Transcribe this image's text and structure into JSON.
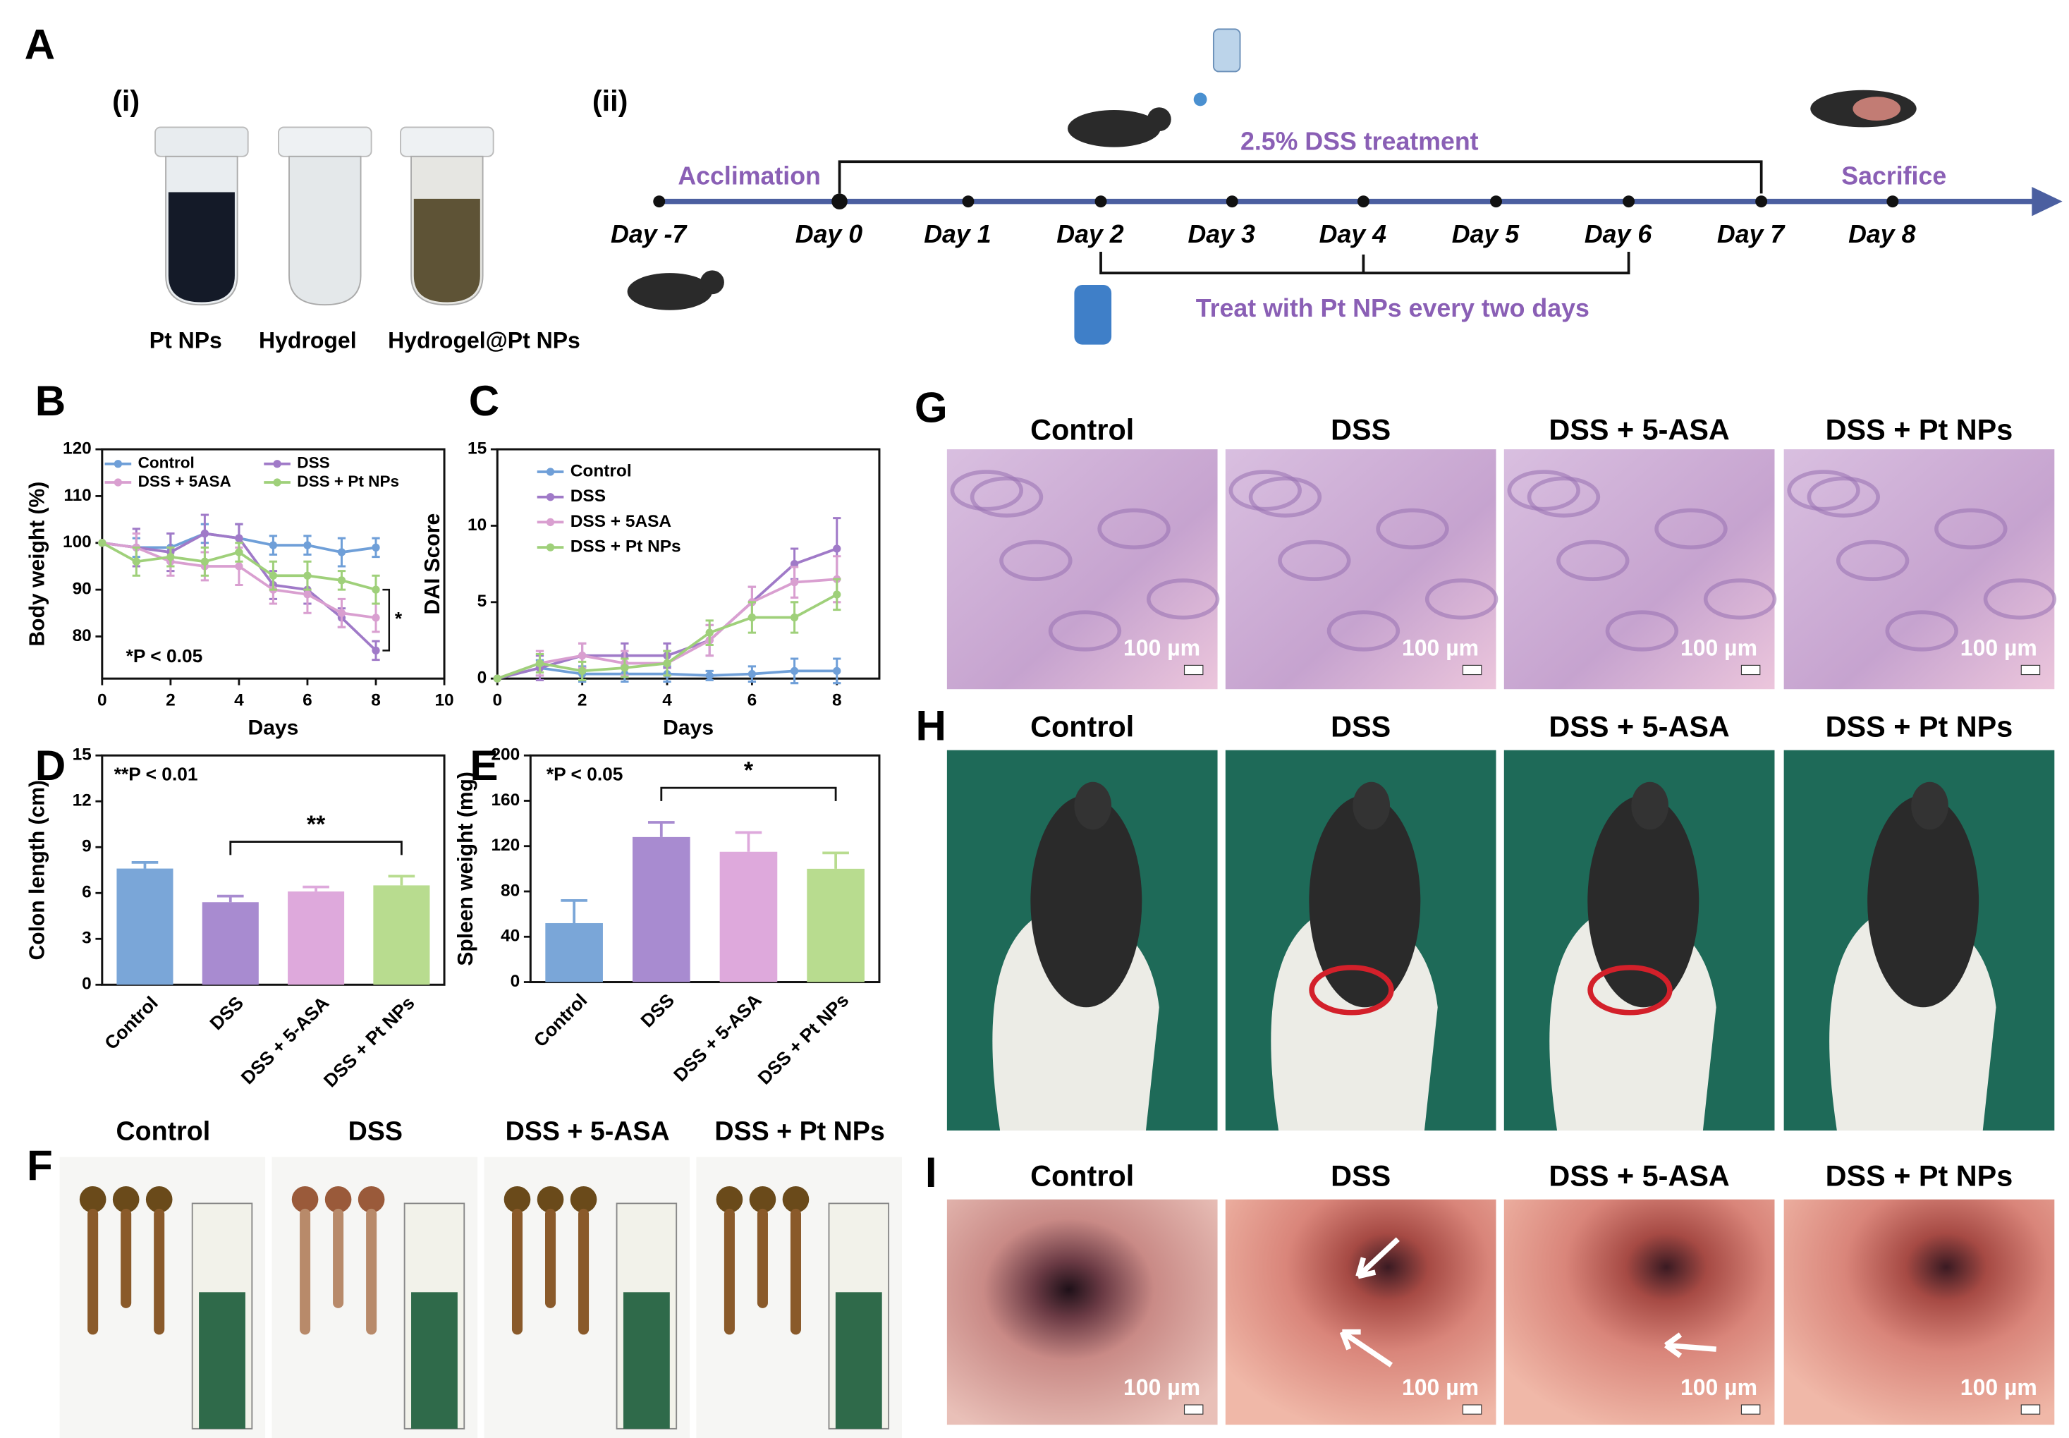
{
  "panel_labels": [
    "A",
    "B",
    "C",
    "D",
    "E",
    "F",
    "G",
    "H",
    "I"
  ],
  "panel_a": {
    "part_labels": [
      "(i)",
      "(ii)"
    ],
    "samples": [
      "Pt NPs",
      "Hydrogel",
      "Hydrogel@Pt NPs"
    ],
    "timeline": {
      "acclimation": "Acclimation",
      "dss_treatment": "2.5% DSS treatment",
      "sacrifice": "Sacrifice",
      "days": [
        "Day -7",
        "Day 0",
        "Day 1",
        "Day 2",
        "Day 3",
        "Day 4",
        "Day 5",
        "Day 6",
        "Day 7",
        "Day 8"
      ],
      "pt_treatment": "Treat with Pt NPs every two days"
    }
  },
  "chart_data": [
    {
      "type": "line",
      "x_label": "Days",
      "y_label": "Body weight (%)",
      "x": [
        0,
        1,
        2,
        3,
        4,
        5,
        6,
        7,
        8
      ],
      "xlim": [
        0,
        10
      ],
      "xticks": [
        0,
        2,
        4,
        6,
        8,
        10
      ],
      "ylim": [
        71,
        120
      ],
      "yticks": [
        80,
        90,
        100,
        110,
        120
      ],
      "legend": "upper left",
      "annotation": "*P < 0.05",
      "significance": "*",
      "series": [
        {
          "name": "Control",
          "color": "#6f9fd8",
          "values": [
            100,
            99,
            99,
            102,
            101,
            99.5,
            99.5,
            98,
            99
          ],
          "errors": [
            0,
            2,
            3,
            2,
            3,
            2,
            2,
            3,
            2
          ]
        },
        {
          "name": "DSS",
          "color": "#a07ac8",
          "values": [
            100,
            99,
            98,
            102,
            101,
            91,
            90,
            84,
            77
          ],
          "errors": [
            0,
            4,
            4,
            4,
            3,
            3,
            3,
            2,
            2
          ]
        },
        {
          "name": "DSS + 5ASA",
          "color": "#d99fd0",
          "values": [
            100,
            99,
            96,
            95,
            95,
            90,
            89,
            85,
            84
          ],
          "errors": [
            0,
            3,
            3,
            3,
            4,
            3,
            4,
            3,
            3
          ]
        },
        {
          "name": "DSS + Pt NPs",
          "color": "#9fd07a",
          "values": [
            100,
            96,
            97,
            96,
            98,
            93,
            93,
            92,
            90
          ],
          "errors": [
            0,
            3,
            2,
            3,
            2,
            3,
            3,
            2,
            3
          ]
        }
      ]
    },
    {
      "type": "line",
      "x_label": "Days",
      "y_label": "DAI Score",
      "x": [
        0,
        1,
        2,
        3,
        4,
        5,
        6,
        7,
        8
      ],
      "xlim": [
        0,
        9
      ],
      "xticks": [
        0,
        2,
        4,
        6,
        8
      ],
      "ylim": [
        0,
        15
      ],
      "yticks": [
        0,
        5,
        10,
        15
      ],
      "legend": "upper left",
      "series": [
        {
          "name": "Control",
          "color": "#6f9fd8",
          "values": [
            0,
            0.7,
            0.3,
            0.3,
            0.3,
            0.2,
            0.3,
            0.5,
            0.5
          ],
          "errors": [
            0,
            0.5,
            0.5,
            0.5,
            0.5,
            0.3,
            0.5,
            0.8,
            0.8
          ]
        },
        {
          "name": "DSS",
          "color": "#a07ac8",
          "values": [
            0,
            0.7,
            1.5,
            1.5,
            1.5,
            2.5,
            5,
            7.5,
            8.5
          ],
          "errors": [
            0,
            0.8,
            0.8,
            0.8,
            0.8,
            1,
            1,
            1,
            2
          ]
        },
        {
          "name": "DSS + 5ASA",
          "color": "#d99fd0",
          "values": [
            0,
            1,
            1.5,
            1,
            1,
            2.5,
            5,
            6.3,
            6.5
          ],
          "errors": [
            0,
            0.8,
            0.8,
            0.8,
            0.8,
            1,
            1,
            1,
            1.5
          ]
        },
        {
          "name": "DSS + Pt NPs",
          "color": "#9fd07a",
          "values": [
            0,
            1,
            0.5,
            0.7,
            1,
            3,
            4,
            4,
            5.5
          ],
          "errors": [
            0,
            0.6,
            0.6,
            0.6,
            0.8,
            0.8,
            1,
            1,
            1
          ]
        }
      ]
    },
    {
      "type": "bar",
      "y_label": "Colon length (cm)",
      "categories": [
        "Control",
        "DSS",
        "DSS + 5-ASA",
        "DSS + Pt NPs"
      ],
      "values": [
        7.6,
        5.4,
        6.1,
        6.5
      ],
      "errors": [
        0.4,
        0.4,
        0.3,
        0.6
      ],
      "colors": [
        "#7aa6d8",
        "#a88bd0",
        "#dea9dc",
        "#b8dc8f"
      ],
      "ylim": [
        0,
        15
      ],
      "yticks": [
        0,
        3,
        6,
        9,
        12,
        15
      ],
      "annotation": "**P < 0.01",
      "significance": "**"
    },
    {
      "type": "bar",
      "y_label": "Spleen weight (mg)",
      "categories": [
        "Control",
        "DSS",
        "DSS + 5-ASA",
        "DSS + Pt NPs"
      ],
      "values": [
        52,
        128,
        115,
        100
      ],
      "errors": [
        20,
        13,
        17,
        14
      ],
      "colors": [
        "#7aa6d8",
        "#a88bd0",
        "#dea9dc",
        "#b8dc8f"
      ],
      "ylim": [
        0,
        200
      ],
      "yticks": [
        0,
        40,
        80,
        120,
        160,
        200
      ],
      "annotation": "*P < 0.05",
      "significance": "*"
    }
  ],
  "panel_f": {
    "groups": [
      "Control",
      "DSS",
      "DSS + 5-ASA",
      "DSS + Pt NPs"
    ]
  },
  "panel_g": {
    "groups": [
      "Control",
      "DSS",
      "DSS + 5-ASA",
      "DSS + Pt NPs"
    ],
    "scale_bar": "100 µm"
  },
  "panel_h": {
    "groups": [
      "Control",
      "DSS",
      "DSS + 5-ASA",
      "DSS + Pt NPs"
    ]
  },
  "panel_i": {
    "groups": [
      "Control",
      "DSS",
      "DSS + 5-ASA",
      "DSS + Pt NPs"
    ],
    "scale_bar": "100 µm"
  }
}
